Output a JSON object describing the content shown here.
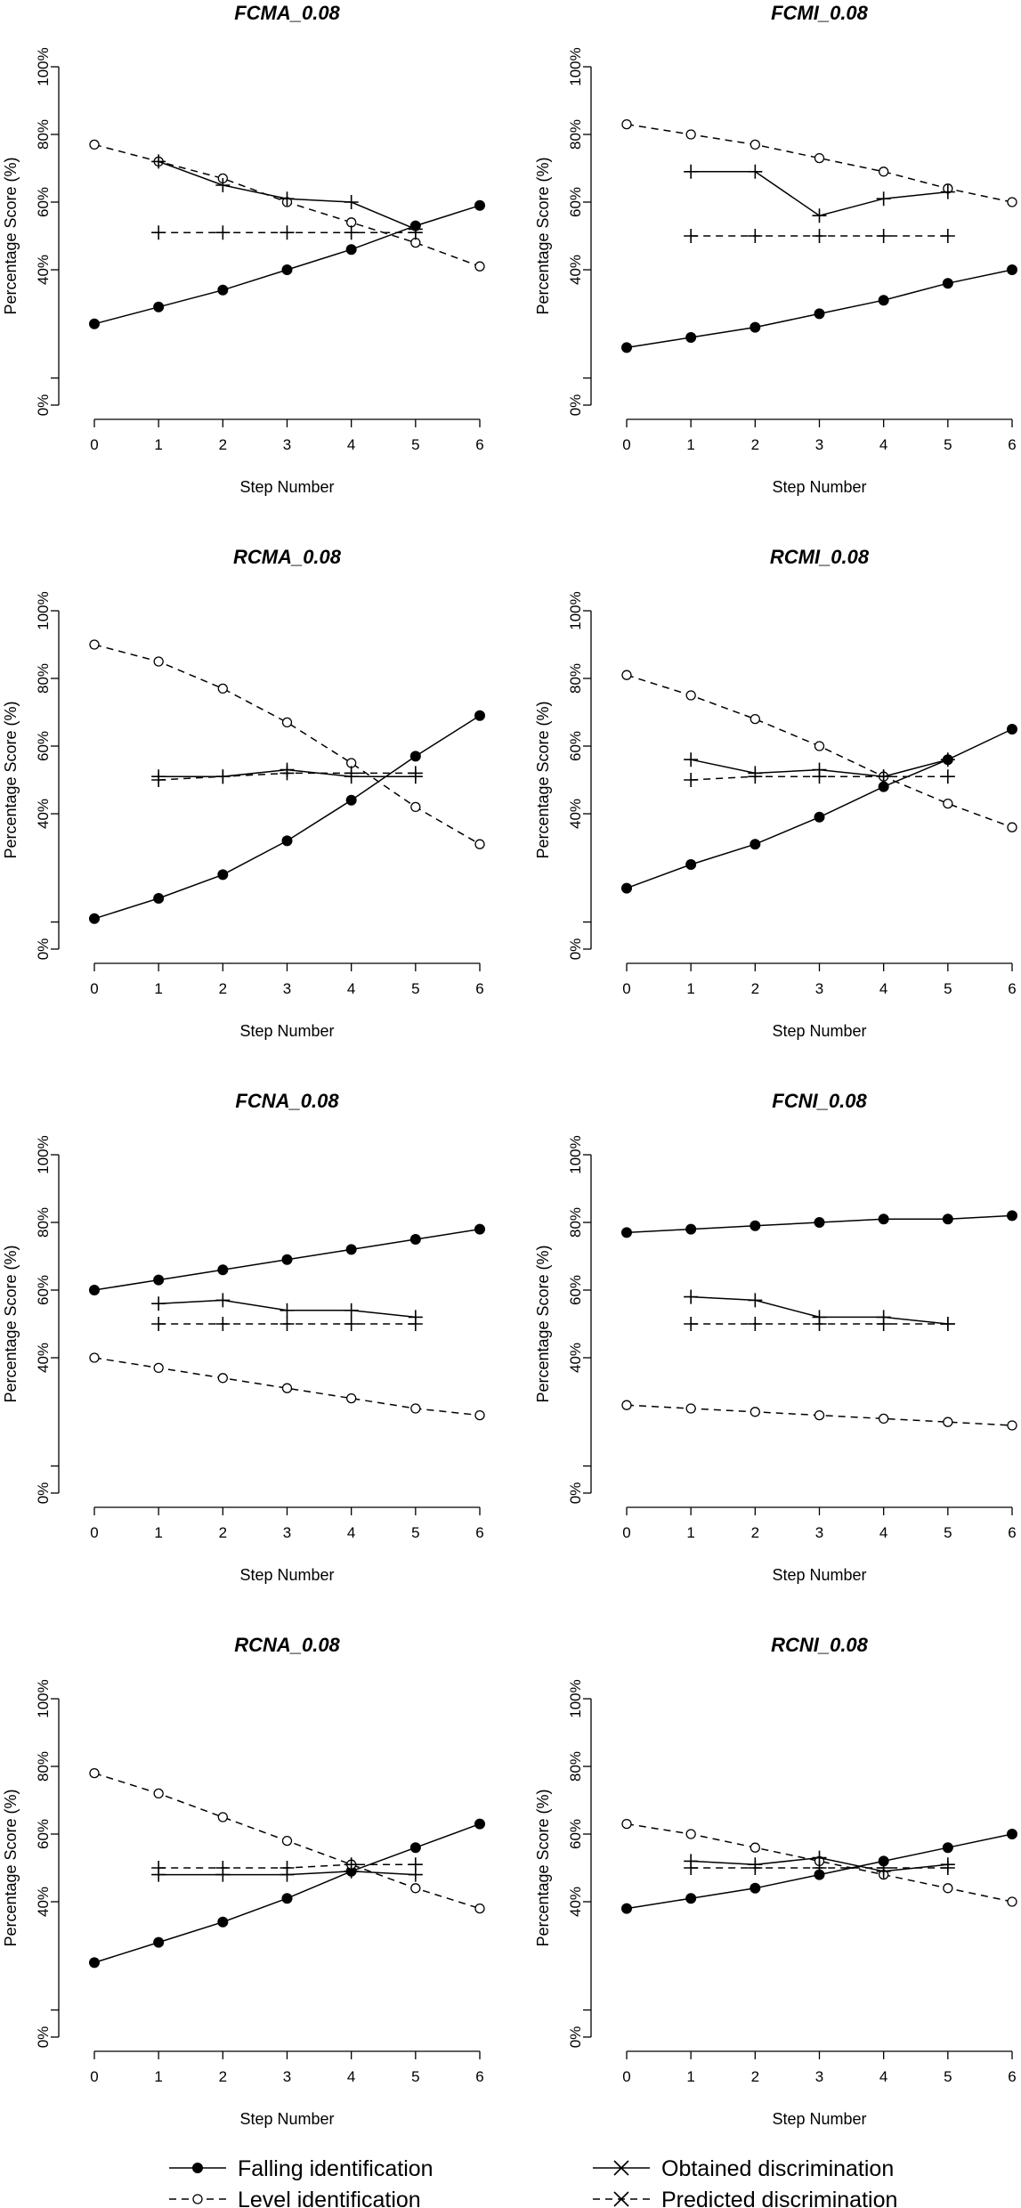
{
  "legend": {
    "entries": [
      {
        "name": "Falling identification",
        "color": "#000000",
        "dash": "solid",
        "marker": "filled-circle"
      },
      {
        "name": "Level identification",
        "color": "#000000",
        "dash": "dashed",
        "marker": "open-circle"
      },
      {
        "name": "Obtained discrimination",
        "color": "#000000",
        "dash": "solid",
        "marker": "cross"
      },
      {
        "name": "Predicted discrimination",
        "color": "#000000",
        "dash": "dashed",
        "marker": "cross"
      }
    ]
  },
  "chart_data": [
    {
      "type": "line",
      "title": "FCMA_0.08",
      "xlabel": "Step Number",
      "ylabel": "Percentage Score (%)",
      "x": [
        0,
        1,
        2,
        3,
        4,
        5,
        6
      ],
      "xlim": [
        0,
        6
      ],
      "xticks": [
        0,
        1,
        2,
        3,
        4,
        5,
        6
      ],
      "ylim": [
        0,
        100
      ],
      "yticks": [
        {
          "value": 0,
          "label": "0%"
        },
        {
          "value": 8,
          "label": null
        },
        {
          "value": 40,
          "label": "40%"
        },
        {
          "value": 60,
          "label": "60%"
        },
        {
          "value": 80,
          "label": "80%"
        },
        {
          "value": 100,
          "label": "100%"
        }
      ],
      "series": [
        {
          "values": [
            24,
            29,
            34,
            40,
            46,
            53,
            59
          ]
        },
        {
          "values": [
            77,
            72,
            67,
            60,
            54,
            48,
            41
          ]
        },
        {
          "values": [
            null,
            72,
            65,
            61,
            60,
            52,
            null
          ]
        },
        {
          "values": [
            null,
            51,
            51,
            51,
            51,
            51,
            null
          ]
        }
      ]
    },
    {
      "type": "line",
      "title": "FCMI_0.08",
      "xlabel": "Step Number",
      "ylabel": "Percentage Score (%)",
      "x": [
        0,
        1,
        2,
        3,
        4,
        5,
        6
      ],
      "xlim": [
        0,
        6
      ],
      "xticks": [
        0,
        1,
        2,
        3,
        4,
        5,
        6
      ],
      "ylim": [
        0,
        100
      ],
      "yticks": [
        {
          "value": 0,
          "label": "0%"
        },
        {
          "value": 8,
          "label": null
        },
        {
          "value": 40,
          "label": "40%"
        },
        {
          "value": 60,
          "label": "60%"
        },
        {
          "value": 80,
          "label": "80%"
        },
        {
          "value": 100,
          "label": "100%"
        }
      ],
      "series": [
        {
          "values": [
            17,
            20,
            23,
            27,
            31,
            36,
            40
          ]
        },
        {
          "values": [
            83,
            80,
            77,
            73,
            69,
            64,
            60
          ]
        },
        {
          "values": [
            null,
            69,
            69,
            56,
            61,
            63,
            null
          ]
        },
        {
          "values": [
            null,
            50,
            50,
            50,
            50,
            50,
            null
          ]
        }
      ]
    },
    {
      "type": "line",
      "title": "RCMA_0.08",
      "xlabel": "Step Number",
      "ylabel": "Percentage Score (%)",
      "x": [
        0,
        1,
        2,
        3,
        4,
        5,
        6
      ],
      "xlim": [
        0,
        6
      ],
      "xticks": [
        0,
        1,
        2,
        3,
        4,
        5,
        6
      ],
      "ylim": [
        0,
        100
      ],
      "yticks": [
        {
          "value": 0,
          "label": "0%"
        },
        {
          "value": 8,
          "label": null
        },
        {
          "value": 40,
          "label": "40%"
        },
        {
          "value": 60,
          "label": "60%"
        },
        {
          "value": 80,
          "label": "80%"
        },
        {
          "value": 100,
          "label": "100%"
        }
      ],
      "series": [
        {
          "values": [
            9,
            15,
            22,
            32,
            44,
            57,
            69
          ]
        },
        {
          "values": [
            90,
            85,
            77,
            67,
            55,
            42,
            31
          ]
        },
        {
          "values": [
            null,
            51,
            51,
            53,
            51,
            51,
            null
          ]
        },
        {
          "values": [
            null,
            50,
            51,
            52,
            52,
            52,
            null
          ]
        }
      ]
    },
    {
      "type": "line",
      "title": "RCMI_0.08",
      "xlabel": "Step Number",
      "ylabel": "Percentage Score (%)",
      "x": [
        0,
        1,
        2,
        3,
        4,
        5,
        6
      ],
      "xlim": [
        0,
        6
      ],
      "xticks": [
        0,
        1,
        2,
        3,
        4,
        5,
        6
      ],
      "ylim": [
        0,
        100
      ],
      "yticks": [
        {
          "value": 0,
          "label": "0%"
        },
        {
          "value": 8,
          "label": null
        },
        {
          "value": 40,
          "label": "40%"
        },
        {
          "value": 60,
          "label": "60%"
        },
        {
          "value": 80,
          "label": "80%"
        },
        {
          "value": 100,
          "label": "100%"
        }
      ],
      "series": [
        {
          "values": [
            18,
            25,
            31,
            39,
            48,
            56,
            65
          ]
        },
        {
          "values": [
            81,
            75,
            68,
            60,
            51,
            43,
            36
          ]
        },
        {
          "values": [
            null,
            56,
            52,
            53,
            51,
            56,
            null
          ]
        },
        {
          "values": [
            null,
            50,
            51,
            51,
            51,
            51,
            null
          ]
        }
      ]
    },
    {
      "type": "line",
      "title": "FCNA_0.08",
      "xlabel": "Step Number",
      "ylabel": "Percentage Score (%)",
      "x": [
        0,
        1,
        2,
        3,
        4,
        5,
        6
      ],
      "xlim": [
        0,
        6
      ],
      "xticks": [
        0,
        1,
        2,
        3,
        4,
        5,
        6
      ],
      "ylim": [
        0,
        100
      ],
      "yticks": [
        {
          "value": 0,
          "label": "0%"
        },
        {
          "value": 8,
          "label": null
        },
        {
          "value": 40,
          "label": "40%"
        },
        {
          "value": 60,
          "label": "60%"
        },
        {
          "value": 80,
          "label": "80%"
        },
        {
          "value": 100,
          "label": "100%"
        }
      ],
      "series": [
        {
          "values": [
            60,
            63,
            66,
            69,
            72,
            75,
            78
          ]
        },
        {
          "values": [
            40,
            37,
            34,
            31,
            28,
            25,
            23
          ]
        },
        {
          "values": [
            null,
            56,
            57,
            54,
            54,
            52,
            null
          ]
        },
        {
          "values": [
            null,
            50,
            50,
            50,
            50,
            50,
            null
          ]
        }
      ]
    },
    {
      "type": "line",
      "title": "FCNI_0.08",
      "xlabel": "Step Number",
      "ylabel": "Percentage Score (%)",
      "x": [
        0,
        1,
        2,
        3,
        4,
        5,
        6
      ],
      "xlim": [
        0,
        6
      ],
      "xticks": [
        0,
        1,
        2,
        3,
        4,
        5,
        6
      ],
      "ylim": [
        0,
        100
      ],
      "yticks": [
        {
          "value": 0,
          "label": "0%"
        },
        {
          "value": 8,
          "label": null
        },
        {
          "value": 40,
          "label": "40%"
        },
        {
          "value": 60,
          "label": "60%"
        },
        {
          "value": 80,
          "label": "80%"
        },
        {
          "value": 100,
          "label": "100%"
        }
      ],
      "series": [
        {
          "values": [
            77,
            78,
            79,
            80,
            81,
            81,
            82
          ]
        },
        {
          "values": [
            26,
            25,
            24,
            23,
            22,
            21,
            20
          ]
        },
        {
          "values": [
            null,
            58,
            57,
            52,
            52,
            50,
            null
          ]
        },
        {
          "values": [
            null,
            50,
            50,
            50,
            50,
            50,
            null
          ]
        }
      ]
    },
    {
      "type": "line",
      "title": "RCNA_0.08",
      "xlabel": "Step Number",
      "ylabel": "Percentage Score (%)",
      "x": [
        0,
        1,
        2,
        3,
        4,
        5,
        6
      ],
      "xlim": [
        0,
        6
      ],
      "xticks": [
        0,
        1,
        2,
        3,
        4,
        5,
        6
      ],
      "ylim": [
        0,
        100
      ],
      "yticks": [
        {
          "value": 0,
          "label": "0%"
        },
        {
          "value": 8,
          "label": null
        },
        {
          "value": 40,
          "label": "40%"
        },
        {
          "value": 60,
          "label": "60%"
        },
        {
          "value": 80,
          "label": "80%"
        },
        {
          "value": 100,
          "label": "100%"
        }
      ],
      "series": [
        {
          "values": [
            22,
            28,
            34,
            41,
            49,
            56,
            63
          ]
        },
        {
          "values": [
            78,
            72,
            65,
            58,
            51,
            44,
            38
          ]
        },
        {
          "values": [
            null,
            48,
            48,
            48,
            49,
            48,
            null
          ]
        },
        {
          "values": [
            null,
            50,
            50,
            50,
            51,
            51,
            null
          ]
        }
      ]
    },
    {
      "type": "line",
      "title": "RCNI_0.08",
      "xlabel": "Step Number",
      "ylabel": "Percentage Score (%)",
      "x": [
        0,
        1,
        2,
        3,
        4,
        5,
        6
      ],
      "xlim": [
        0,
        6
      ],
      "xticks": [
        0,
        1,
        2,
        3,
        4,
        5,
        6
      ],
      "ylim": [
        0,
        100
      ],
      "yticks": [
        {
          "value": 0,
          "label": "0%"
        },
        {
          "value": 8,
          "label": null
        },
        {
          "value": 40,
          "label": "40%"
        },
        {
          "value": 60,
          "label": "60%"
        },
        {
          "value": 80,
          "label": "80%"
        },
        {
          "value": 100,
          "label": "100%"
        }
      ],
      "series": [
        {
          "values": [
            38,
            41,
            44,
            48,
            52,
            56,
            60
          ]
        },
        {
          "values": [
            63,
            60,
            56,
            52,
            48,
            44,
            40
          ]
        },
        {
          "values": [
            null,
            52,
            51,
            53,
            49,
            51,
            null
          ]
        },
        {
          "values": [
            null,
            50,
            50,
            50,
            50,
            50,
            null
          ]
        }
      ]
    }
  ]
}
